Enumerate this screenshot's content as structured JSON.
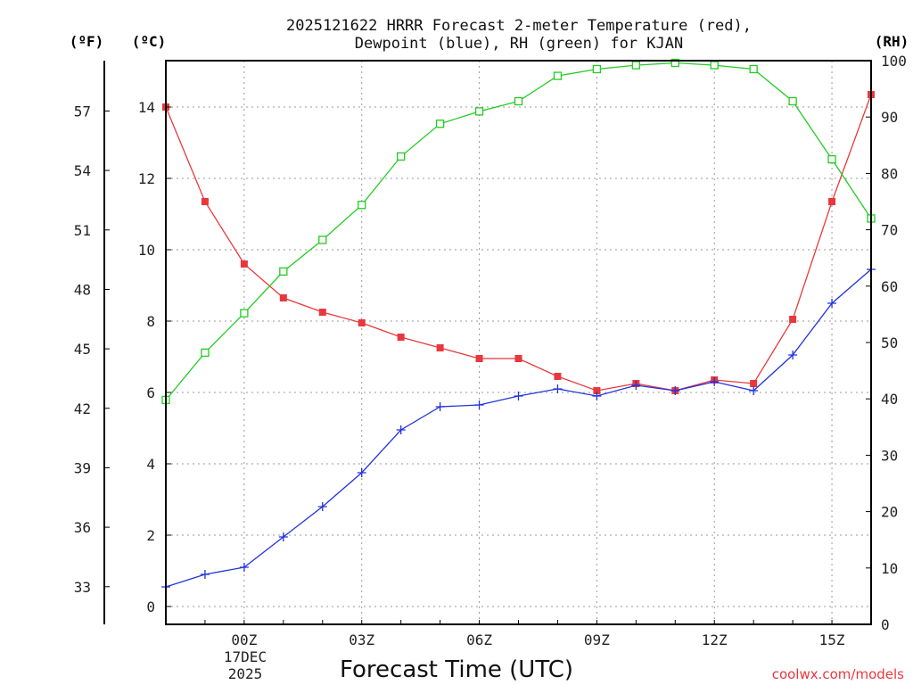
{
  "chart_data": {
    "type": "line",
    "title_lines": [
      "2025121622 HRRR Forecast 2-meter Temperature (red),",
      "Dewpoint (blue), RH (green) for KJAN"
    ],
    "xlabel": "Forecast Time (UTC)",
    "x_hours": [
      22,
      23,
      24,
      25,
      26,
      27,
      28,
      29,
      30,
      31,
      32,
      33,
      34,
      35,
      36,
      37,
      38,
      39,
      40
    ],
    "xlim": [
      22,
      40
    ],
    "x_ticks": [
      {
        "hour": 24,
        "label": "00Z"
      },
      {
        "hour": 27,
        "label": "03Z"
      },
      {
        "hour": 30,
        "label": "06Z"
      },
      {
        "hour": 33,
        "label": "09Z"
      },
      {
        "hour": 36,
        "label": "12Z"
      },
      {
        "hour": 39,
        "label": "15Z"
      }
    ],
    "date_label_lines": [
      "17DEC",
      "2025"
    ],
    "left_axis_celsius": {
      "unit_label": "(ºC)",
      "ylim": [
        -0.5,
        15.3
      ],
      "ticks": [
        0,
        2,
        4,
        6,
        8,
        10,
        12,
        14
      ]
    },
    "left_axis_fahrenheit": {
      "unit_label": "(ºF)",
      "ticks": [
        33,
        36,
        39,
        42,
        45,
        48,
        51,
        54,
        57
      ]
    },
    "right_axis_rh": {
      "unit_label": "(RH)",
      "ylim": [
        0,
        100
      ],
      "ticks": [
        0,
        10,
        20,
        30,
        40,
        50,
        60,
        70,
        80,
        90,
        100
      ]
    },
    "series": [
      {
        "name": "Temperature",
        "axis": "celsius",
        "color": "#e8383d",
        "marker": "filled-square",
        "values": [
          14.0,
          11.35,
          9.6,
          8.65,
          8.25,
          7.95,
          7.55,
          7.25,
          6.95,
          6.95,
          6.45,
          6.05,
          6.25,
          6.05,
          6.35,
          6.25,
          8.05,
          11.35,
          14.35
        ]
      },
      {
        "name": "Dewpoint",
        "axis": "celsius",
        "color": "#2233dd",
        "marker": "plus",
        "values": [
          0.55,
          0.9,
          1.1,
          1.95,
          2.8,
          3.75,
          4.95,
          5.6,
          5.65,
          5.9,
          6.1,
          5.9,
          6.2,
          6.05,
          6.3,
          6.05,
          7.05,
          8.5,
          9.45
        ]
      },
      {
        "name": "RH",
        "axis": "rh",
        "color": "#22cc22",
        "marker": "open-square",
        "values": [
          39.8,
          48.2,
          55.2,
          62.6,
          68.2,
          74.4,
          83.0,
          88.8,
          91.0,
          92.8,
          97.3,
          98.5,
          99.2,
          99.6,
          99.2,
          98.5,
          92.8,
          82.5,
          72.0
        ]
      }
    ]
  },
  "footer": {
    "credit": "coolwx.com/models",
    "credit_color": "#e8383d"
  }
}
